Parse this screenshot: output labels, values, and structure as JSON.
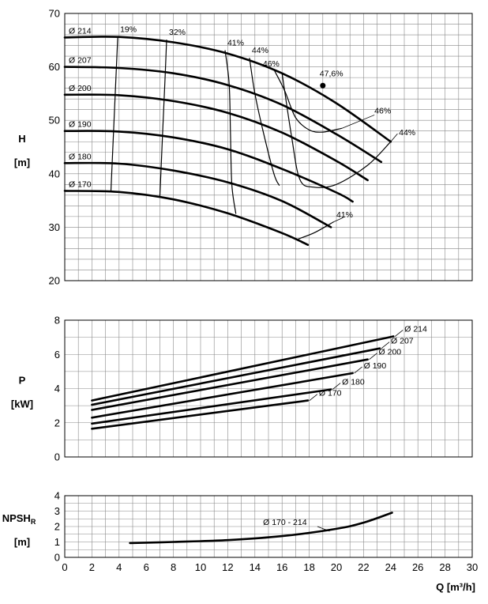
{
  "chart_data": [
    {
      "type": "line",
      "panel": "head",
      "ylabel": "H",
      "yunit": "[m]",
      "xlim": [
        0,
        30
      ],
      "ylim": [
        20,
        70
      ],
      "yticks": [
        20,
        30,
        40,
        50,
        60,
        70
      ],
      "grid": true,
      "series": [
        {
          "name": "Ø 214",
          "x": [
            0,
            4,
            8,
            12,
            16,
            20,
            24
          ],
          "y": [
            65.5,
            65.6,
            64.6,
            62.5,
            58.8,
            53.2,
            46.0
          ]
        },
        {
          "name": "Ø 207",
          "x": [
            0,
            4,
            8,
            12,
            16,
            20,
            23.3
          ],
          "y": [
            60.0,
            59.8,
            58.8,
            56.6,
            52.9,
            47.4,
            42.2
          ]
        },
        {
          "name": "Ø 200",
          "x": [
            0,
            4,
            8,
            12,
            16,
            20,
            22.3
          ],
          "y": [
            54.8,
            54.7,
            53.6,
            51.4,
            47.7,
            42.4,
            38.8
          ]
        },
        {
          "name": "Ø 190",
          "x": [
            0,
            4,
            8,
            12,
            16,
            20,
            21.2
          ],
          "y": [
            48.0,
            47.9,
            46.8,
            44.6,
            40.9,
            36.5,
            34.8
          ]
        },
        {
          "name": "Ø 180",
          "x": [
            0,
            4,
            8,
            12,
            16,
            19.6
          ],
          "y": [
            42.0,
            41.9,
            40.6,
            38.4,
            34.9,
            30.0
          ]
        },
        {
          "name": "Ø 170",
          "x": [
            0,
            4,
            8,
            12,
            16,
            17.9
          ],
          "y": [
            36.8,
            36.6,
            35.2,
            32.6,
            28.9,
            26.7
          ]
        }
      ],
      "efficiency_lines": [
        {
          "label": "19%",
          "x": [
            3.9,
            3.4
          ],
          "y": [
            65.6,
            36.8
          ]
        },
        {
          "label": "32%",
          "x": [
            7.5,
            7.4,
            7.2,
            7.0
          ],
          "y": [
            65.1,
            58.8,
            47.2,
            35.6
          ]
        },
        {
          "label": "41%",
          "x": [
            11.8,
            12.1,
            12.2,
            12.3,
            12.6
          ],
          "y": [
            63.1,
            57.0,
            48.0,
            38.0,
            32.5
          ]
        },
        {
          "label": "44%",
          "x": [
            13.6,
            14.0,
            14.6,
            15.4,
            15.8
          ],
          "y": [
            61.7,
            55.0,
            48.0,
            40.0,
            37.8
          ]
        },
        {
          "label": "46%",
          "x": [
            15.4,
            16.2,
            17.0,
            18.0,
            19.0,
            20.4
          ],
          "y": [
            59.5,
            55.5,
            50.5,
            48.2,
            47.8,
            48.5
          ]
        },
        {
          "label": "44%",
          "x": [
            16.0,
            16.7,
            17.3,
            18.3,
            20.0,
            22.3,
            24.0
          ],
          "y": [
            58.8,
            47.0,
            39.0,
            37.5,
            38.0,
            41.6,
            46.0
          ]
        },
        {
          "label": "41%",
          "x": [
            17.2,
            18.4,
            19.8
          ],
          "y": [
            27.8,
            29.0,
            31.0
          ]
        }
      ],
      "annotations": [
        {
          "text": "47,6%",
          "x": 19.0,
          "y": 56.5
        },
        {
          "text": "46%"
        },
        {
          "text": "44%"
        },
        {
          "text": "41%"
        }
      ]
    },
    {
      "type": "line",
      "panel": "power",
      "ylabel": "P",
      "yunit": "[kW]",
      "xlim": [
        0,
        30
      ],
      "ylim": [
        0,
        8
      ],
      "yticks": [
        0,
        2,
        4,
        6,
        8
      ],
      "grid": true,
      "series": [
        {
          "name": "Ø 214",
          "x": [
            2,
            24.2
          ],
          "y": [
            3.3,
            7.05
          ]
        },
        {
          "name": "Ø 207",
          "x": [
            2,
            23.2
          ],
          "y": [
            3.05,
            6.35
          ]
        },
        {
          "name": "Ø 200",
          "x": [
            2,
            22.3
          ],
          "y": [
            2.75,
            5.7
          ]
        },
        {
          "name": "Ø 190",
          "x": [
            2,
            21.2
          ],
          "y": [
            2.3,
            4.9
          ]
        },
        {
          "name": "Ø 180",
          "x": [
            2,
            19.6
          ],
          "y": [
            1.95,
            3.95
          ]
        },
        {
          "name": "Ø 170",
          "x": [
            2,
            17.9
          ],
          "y": [
            1.65,
            3.3
          ]
        }
      ]
    },
    {
      "type": "line",
      "panel": "npsh",
      "ylabel": "NPSH",
      "ylabel_sub": "R",
      "yunit": "[m]",
      "xlabel": "Q [m³/h]",
      "xlim": [
        0,
        30
      ],
      "ylim": [
        0,
        4
      ],
      "xticks": [
        0,
        2,
        4,
        6,
        8,
        10,
        12,
        14,
        16,
        18,
        20,
        22,
        24,
        26,
        28,
        30
      ],
      "yticks": [
        0,
        1,
        2,
        3,
        4
      ],
      "grid": true,
      "series": [
        {
          "name": "Ø 170 - 214",
          "x": [
            4.8,
            8,
            12,
            16,
            20,
            22,
            24.1
          ],
          "y": [
            0.93,
            1.0,
            1.12,
            1.38,
            1.85,
            2.25,
            2.9
          ]
        }
      ]
    }
  ]
}
